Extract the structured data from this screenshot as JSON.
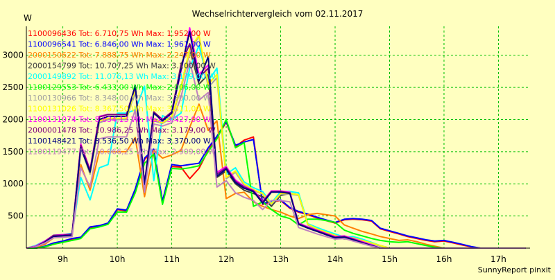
{
  "chart_data": {
    "type": "line",
    "title": "Wechselrichtervergleich vom 02.11.2017",
    "ylabel": "W",
    "footer": "SunnyReport pinxit",
    "grid": true,
    "legend_position": "top-left",
    "ylim": [
      0,
      3450
    ],
    "xlim": [
      8.33,
      17.58
    ],
    "x_ticks": [
      9,
      10,
      11,
      12,
      13,
      14,
      15,
      16,
      17
    ],
    "x_tick_labels": [
      "9h",
      "10h",
      "11h",
      "12h",
      "13h",
      "14h",
      "15h",
      "16h",
      "17h"
    ],
    "y_ticks": [
      500,
      1000,
      1500,
      2000,
      2500,
      3000
    ],
    "y_tick_labels": [
      "500",
      "1000",
      "1500",
      "2000",
      "2500",
      "3000"
    ],
    "x": [
      8.33,
      8.5,
      8.67,
      8.83,
      9.0,
      9.17,
      9.33,
      9.5,
      9.67,
      9.83,
      10.0,
      10.17,
      10.33,
      10.5,
      10.67,
      10.83,
      11.0,
      11.17,
      11.33,
      11.5,
      11.67,
      11.83,
      12.0,
      12.17,
      12.33,
      12.5,
      12.67,
      12.83,
      13.0,
      13.17,
      13.33,
      13.5,
      13.67,
      13.83,
      14.0,
      14.17,
      14.33,
      14.5,
      14.67,
      14.83,
      15.0,
      15.17,
      15.33,
      15.5,
      15.67,
      15.83,
      16.0,
      16.17,
      16.33,
      16.5,
      16.67,
      16.83,
      17.0,
      17.17,
      17.33,
      17.5
    ],
    "series": [
      {
        "legend": "1100096436 Tot: 6.710,75 Wh Max: 1.952,00 W",
        "color": "#ff0000",
        "values": [
          0,
          0,
          20,
          60,
          100,
          140,
          160,
          320,
          340,
          380,
          600,
          580,
          900,
          1380,
          1520,
          720,
          1270,
          1260,
          1080,
          1240,
          1520,
          1720,
          1960,
          1580,
          1680,
          1730,
          680,
          720,
          740,
          620,
          560,
          520,
          470,
          430,
          390,
          440,
          450,
          440,
          420,
          300,
          260,
          220,
          180,
          150,
          120,
          100,
          110,
          80,
          50,
          20,
          0,
          0,
          0,
          0,
          0,
          0
        ]
      },
      {
        "legend": "1100096541 Tot: 6.846,00 Wh Max: 1.961,00 W",
        "color": "#0000ff",
        "values": [
          0,
          0,
          30,
          80,
          110,
          150,
          170,
          330,
          350,
          390,
          610,
          590,
          920,
          1400,
          1540,
          730,
          1300,
          1280,
          1300,
          1320,
          1560,
          1740,
          1970,
          1600,
          1650,
          1690,
          690,
          730,
          750,
          630,
          570,
          530,
          480,
          440,
          400,
          450,
          460,
          450,
          430,
          310,
          270,
          230,
          190,
          160,
          130,
          110,
          120,
          90,
          60,
          25,
          0,
          0,
          0,
          0,
          0,
          0
        ]
      },
      {
        "legend": "2000150622 Tot: 7.888,75 Wh Max: 2.247,00 W",
        "color": "#ff8000",
        "values": [
          0,
          10,
          60,
          160,
          180,
          200,
          1300,
          900,
          1500,
          1500,
          1500,
          1500,
          1720,
          800,
          1520,
          1400,
          1450,
          1520,
          1880,
          2240,
          1830,
          1980,
          770,
          850,
          870,
          720,
          650,
          600,
          560,
          500,
          460,
          520,
          540,
          520,
          500,
          360,
          310,
          260,
          220,
          180,
          150,
          120,
          130,
          100,
          60,
          30,
          0,
          0,
          0,
          0,
          0,
          0,
          0,
          0,
          0,
          0
        ]
      },
      {
        "legend": "2000154799 Tot: 10.707,25 Wh Max: 3.100,00 W",
        "color": "#404040",
        "values": [
          0,
          20,
          90,
          190,
          200,
          220,
          1600,
          1200,
          2000,
          2050,
          2050,
          2050,
          2500,
          1000,
          2000,
          1950,
          2050,
          2500,
          3100,
          2550,
          2700,
          1100,
          1200,
          1000,
          900,
          850,
          800,
          650,
          820,
          850,
          830,
          370,
          300,
          250,
          200,
          150,
          160,
          120,
          80,
          40,
          0,
          0,
          0,
          0,
          0,
          0,
          0,
          0,
          0,
          0,
          0,
          0,
          0,
          0,
          0,
          0
        ]
      },
      {
        "legend": "2000149892 Tot: 11.076,13 Wh Max: 3.179,00 W",
        "color": "#00ffff",
        "values": [
          0,
          40,
          110,
          200,
          210,
          230,
          1100,
          750,
          1250,
          1300,
          2100,
          2100,
          2150,
          2520,
          1050,
          2060,
          2000,
          2100,
          2800,
          3150,
          2600,
          2800,
          1150,
          1250,
          1030,
          940,
          880,
          700,
          880,
          880,
          860,
          380,
          320,
          270,
          220,
          170,
          180,
          140,
          90,
          40,
          0,
          0,
          0,
          0,
          0,
          0,
          0,
          0,
          0,
          0,
          0,
          0,
          0,
          0,
          0,
          0
        ]
      },
      {
        "legend": "1100129553 Tot: 6.433,00 Wh Max: 2.006,00 W",
        "color": "#00ff00",
        "values": [
          0,
          0,
          20,
          60,
          90,
          120,
          150,
          300,
          330,
          370,
          560,
          560,
          860,
          1320,
          1460,
          680,
          1240,
          1230,
          1250,
          1280,
          1500,
          1700,
          2000,
          1560,
          1640,
          650,
          720,
          600,
          500,
          460,
          360,
          450,
          450,
          430,
          400,
          280,
          230,
          190,
          150,
          120,
          100,
          90,
          100,
          70,
          40,
          15,
          0,
          0,
          0,
          0,
          0,
          0,
          0,
          0,
          0,
          0
        ]
      },
      {
        "legend": "1100130966 Tot: 8.348,00 Wh Max: 3.300,00 W",
        "color": "#a0a0a0",
        "values": [
          0,
          30,
          100,
          190,
          200,
          210,
          1560,
          1150,
          1950,
          2000,
          2000,
          2000,
          2450,
          980,
          1980,
          1940,
          2030,
          2480,
          3050,
          3300,
          2500,
          2650,
          1080,
          1180,
          980,
          900,
          840,
          680,
          840,
          840,
          820,
          360,
          290,
          240,
          190,
          140,
          150,
          110,
          70,
          30,
          0,
          0,
          0,
          0,
          0,
          0,
          0,
          0,
          0,
          0,
          0,
          0,
          0,
          0,
          0,
          0
        ]
      },
      {
        "legend": "1100131026 Tot: 8.367,50 Wh Max: 3.311,00 W",
        "color": "#ffff00",
        "values": [
          0,
          30,
          100,
          190,
          200,
          210,
          1580,
          1170,
          1980,
          2020,
          2020,
          2020,
          2480,
          990,
          2000,
          1950,
          2050,
          2500,
          3100,
          3311,
          2550,
          2700,
          1100,
          1200,
          1000,
          910,
          850,
          690,
          850,
          850,
          830,
          370,
          300,
          250,
          200,
          150,
          160,
          120,
          80,
          40,
          0,
          0,
          0,
          0,
          0,
          0,
          0,
          0,
          0,
          0,
          0,
          0,
          0,
          0,
          0,
          0
        ]
      },
      {
        "legend": "1100131074 Tot: 8.634,13 Wh Max: 3.427,00 W",
        "color": "#ff00ff",
        "values": [
          0,
          30,
          110,
          200,
          210,
          220,
          1620,
          1220,
          2050,
          2080,
          2080,
          2080,
          2520,
          1010,
          2100,
          2000,
          2100,
          2750,
          3427,
          2700,
          2850,
          1180,
          1270,
          1060,
          960,
          900,
          730,
          890,
          890,
          870,
          390,
          330,
          280,
          230,
          180,
          190,
          150,
          100,
          50,
          0,
          0,
          0,
          0,
          0,
          0,
          0,
          0,
          0,
          0,
          0,
          0,
          0,
          0,
          0,
          0,
          0
        ]
      },
      {
        "legend": "2000001478 Tot: 10.986,25 Wh Max: 3.179,00 W",
        "color": "#800080",
        "values": [
          0,
          20,
          100,
          200,
          200,
          220,
          1600,
          1210,
          2040,
          2080,
          2080,
          2080,
          2520,
          1010,
          2120,
          2000,
          2120,
          2850,
          3179,
          2650,
          2800,
          1150,
          1250,
          1040,
          950,
          890,
          720,
          880,
          880,
          860,
          380,
          320,
          270,
          220,
          170,
          180,
          140,
          90,
          40,
          0,
          0,
          0,
          0,
          0,
          0,
          0,
          0,
          0,
          0,
          0,
          0,
          0,
          0,
          0,
          0,
          0
        ]
      },
      {
        "legend": "1100148421 Tot: 8.536,50 Wh Max: 3.370,00 W",
        "color": "#000080",
        "values": [
          0,
          20,
          90,
          180,
          190,
          200,
          1560,
          1180,
          2000,
          2050,
          2050,
          2050,
          2530,
          990,
          2100,
          1980,
          2100,
          2780,
          3370,
          2600,
          2980,
          1120,
          1230,
          1020,
          930,
          880,
          700,
          870,
          870,
          850,
          370,
          310,
          260,
          210,
          160,
          170,
          130,
          80,
          40,
          0,
          0,
          0,
          0,
          0,
          0,
          0,
          0,
          0,
          0,
          0,
          0,
          0,
          0,
          0,
          0,
          0
        ]
      },
      {
        "legend": "1100119477 Tot: 10.066,25 Wh Max: 2.909,00 W",
        "color": "#c080c0",
        "values": [
          0,
          20,
          80,
          160,
          170,
          180,
          1250,
          950,
          1700,
          1730,
          1730,
          1730,
          2150,
          870,
          1930,
          1900,
          1950,
          2350,
          2909,
          2300,
          2420,
          950,
          1050,
          860,
          790,
          740,
          600,
          740,
          740,
          720,
          320,
          270,
          220,
          180,
          140,
          150,
          110,
          70,
          30,
          0,
          0,
          0,
          0,
          0,
          0,
          0,
          0,
          0,
          0,
          0,
          0,
          0,
          0,
          0,
          0,
          0
        ]
      }
    ]
  }
}
